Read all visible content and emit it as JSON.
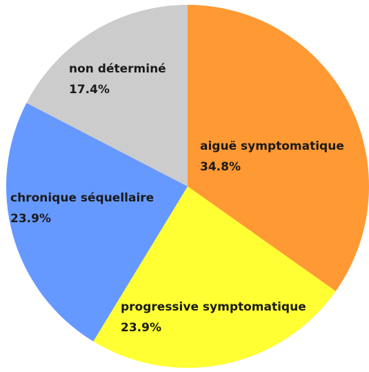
{
  "chart_data": {
    "type": "pie",
    "categories": [
      "aiguë symptomatique",
      "progressive symptomatique",
      "chronique séquellaire",
      "non déterminé"
    ],
    "values": [
      34.8,
      23.9,
      23.9,
      17.4
    ],
    "value_labels": [
      "34.8%",
      "23.9%",
      "23.9%",
      "17.4%"
    ],
    "colors": [
      "#ff9933",
      "#ffff33",
      "#6699ff",
      "#cccccc"
    ]
  }
}
